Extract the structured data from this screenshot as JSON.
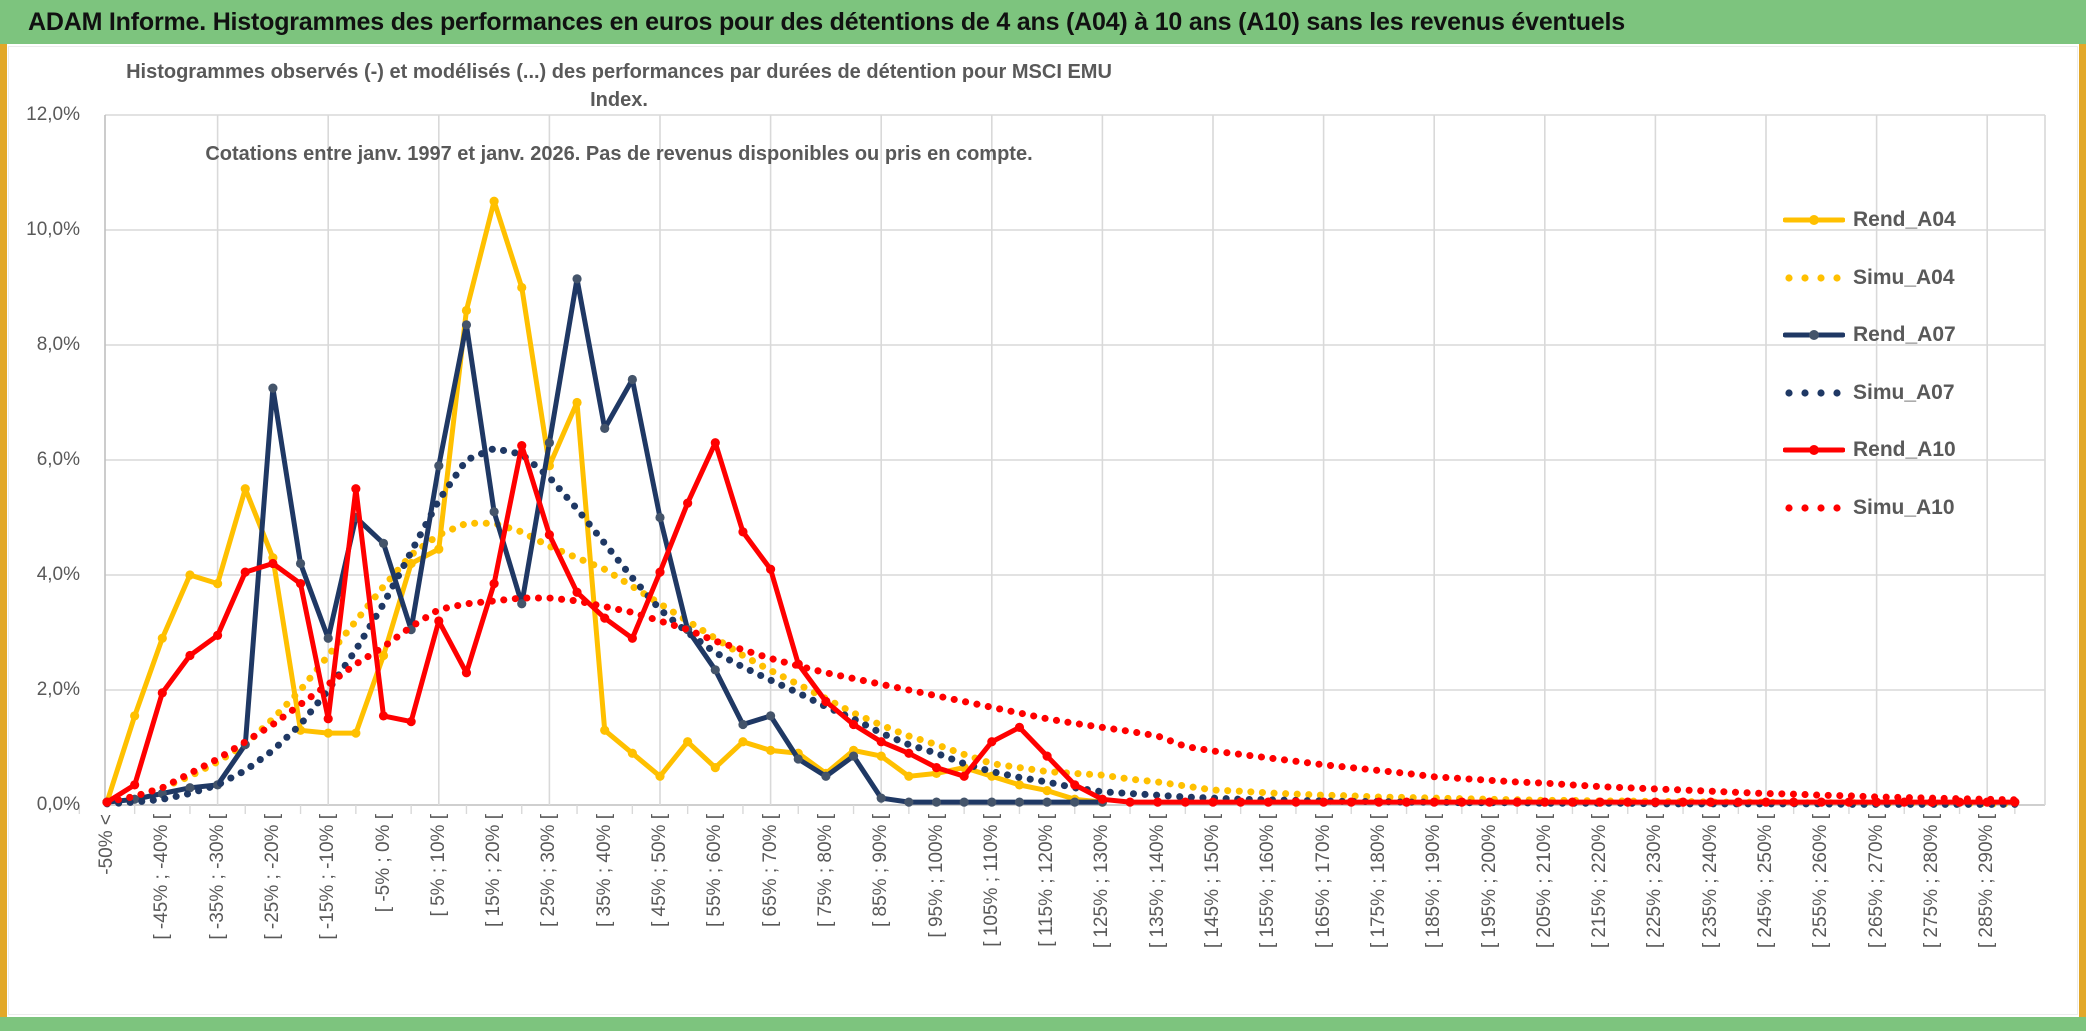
{
  "header": {
    "title": "ADAM Informe. Histogrammes des performances en euros pour des détentions de 4 ans (A04) à 10 ans (A10) sans les revenus éventuels",
    "bg_color": "#7DC47E",
    "accent_gold": "#E2A829"
  },
  "chart_data": {
    "type": "line",
    "title_line1": "Histogrammes observés (-) et modélisés (...) des performances par durées de détention pour MSCI EMU Index.",
    "title_line2": "Cotations entre janv. 1997 et janv. 2026. Pas de revenus disponibles ou pris en compte.",
    "ylabel": "",
    "xlabel": "",
    "ylim": [
      0,
      12
    ],
    "y_tick_labels": [
      "12,0%",
      "10,0%",
      "8,0%",
      "6,0%",
      "4,0%",
      "2,0%",
      "0,0%"
    ],
    "grid": true,
    "legend_position": "right",
    "bin_width_pct": 5,
    "x_labels_every_other_bin": true,
    "x_labels": [
      "-50% <",
      "[ -45% ; -40% [",
      "[ -35% ; -30% [",
      "[ -25% ; -20% [",
      "[ -15% ; -10% [",
      "[ -5% ; 0% [",
      "[ 5% ; 10% [",
      "[ 15% ; 20% [",
      "[ 25% ; 30% [",
      "[ 35% ; 40% [",
      "[ 45% ; 50% [",
      "[ 55% ; 60% [",
      "[ 65% ; 70% [",
      "[ 75% ; 80% [",
      "[ 85% ; 90% [",
      "[ 95% ; 100% [",
      "[ 105% ; 110% [",
      "[ 115% ; 120% [",
      "[ 125% ; 130% [",
      "[ 135% ; 140% [",
      "[ 145% ; 150% [",
      "[ 155% ; 160% [",
      "[ 165% ; 170% [",
      "[ 175% ; 180% [",
      "[ 185% ; 190% [",
      "[ 195% ; 200% [",
      "[ 205% ; 210% [",
      "[ 215% ; 220% [",
      "[ 225% ; 230% [",
      "[ 235% ; 240% [",
      "[ 245% ; 250% [",
      "[ 255% ; 260% [",
      "[ 265% ; 270% [",
      "[ 275% ; 280% [",
      "[ 285% ; 290% ["
    ],
    "series": [
      {
        "name": "Rend_A04",
        "style": "solid",
        "color": "#FFC000",
        "marker_color": "#FFC000",
        "values": [
          0.05,
          1.55,
          2.9,
          4.0,
          3.85,
          5.5,
          4.3,
          1.3,
          1.25,
          1.25,
          2.6,
          4.2,
          4.45,
          8.6,
          10.5,
          9.0,
          5.9,
          7.0,
          1.3,
          0.9,
          0.5,
          1.1,
          0.65,
          1.1,
          0.95,
          0.9,
          0.55,
          0.95,
          0.85,
          0.5,
          0.55,
          0.65,
          0.5,
          0.35,
          0.25,
          0.1,
          0.05,
          null,
          null,
          null,
          null,
          null,
          null,
          null,
          null,
          null,
          null,
          null,
          null,
          null,
          null,
          null,
          null,
          null,
          null,
          null,
          null,
          null,
          null,
          null,
          null,
          null,
          null,
          null,
          null,
          null,
          null,
          null,
          null,
          null
        ]
      },
      {
        "name": "Simu_A04",
        "style": "dotted",
        "color": "#FFC000",
        "values": [
          0.05,
          0.15,
          0.3,
          0.5,
          0.75,
          1.05,
          1.5,
          2.0,
          2.6,
          3.2,
          3.8,
          4.35,
          4.7,
          4.9,
          4.9,
          4.75,
          4.5,
          4.3,
          4.1,
          3.8,
          3.5,
          3.2,
          2.9,
          2.6,
          2.34,
          2.1,
          1.85,
          1.6,
          1.39,
          1.2,
          1.05,
          0.88,
          0.72,
          0.65,
          0.58,
          0.55,
          0.52,
          0.45,
          0.4,
          0.33,
          0.26,
          0.24,
          0.21,
          0.19,
          0.17,
          0.16,
          0.14,
          0.13,
          0.12,
          0.11,
          0.1,
          0.09,
          0.08,
          0.08,
          0.07,
          0.07,
          0.06,
          0.06,
          0.05,
          0.05,
          0.05,
          0.04,
          0.04,
          0.04,
          0.03,
          0.03,
          0.03,
          0.03,
          0.02,
          0.02
        ]
      },
      {
        "name": "Rend_A07",
        "style": "solid",
        "color": "#1F3864",
        "marker_color": "#44546A",
        "values": [
          0.05,
          0.1,
          0.2,
          0.3,
          0.35,
          1.05,
          7.25,
          4.2,
          2.9,
          5.0,
          4.55,
          3.05,
          5.9,
          8.35,
          5.1,
          3.5,
          6.3,
          9.15,
          6.55,
          7.4,
          5.0,
          3.05,
          2.35,
          1.4,
          1.55,
          0.8,
          0.5,
          0.85,
          0.12,
          0.05,
          0.05,
          0.05,
          0.05,
          0.05,
          0.05,
          0.05,
          0.05,
          null,
          null,
          null,
          null,
          null,
          null,
          null,
          null,
          null,
          null,
          null,
          null,
          null,
          null,
          null,
          null,
          null,
          null,
          null,
          null,
          null,
          null,
          null,
          null,
          null,
          null,
          null,
          null,
          null,
          null,
          null,
          null,
          null
        ]
      },
      {
        "name": "Simu_A07",
        "style": "dotted",
        "color": "#1F3864",
        "values": [
          0.02,
          0.05,
          0.1,
          0.2,
          0.35,
          0.6,
          0.95,
          1.4,
          2.0,
          2.7,
          3.5,
          4.4,
          5.3,
          6.0,
          6.2,
          6.1,
          5.7,
          5.15,
          4.55,
          3.95,
          3.4,
          3.0,
          2.65,
          2.4,
          2.17,
          1.95,
          1.71,
          1.5,
          1.25,
          1.05,
          0.9,
          0.72,
          0.58,
          0.48,
          0.4,
          0.3,
          0.23,
          0.2,
          0.17,
          0.14,
          0.12,
          0.1,
          0.09,
          0.08,
          0.07,
          0.06,
          0.06,
          0.05,
          0.05,
          0.04,
          0.04,
          0.04,
          0.03,
          0.03,
          0.03,
          0.03,
          0.02,
          0.02,
          0.02,
          0.02,
          0.02,
          0.02,
          0.02,
          0.01,
          0.01,
          0.01,
          0.01,
          0.01,
          0.01,
          0.01
        ]
      },
      {
        "name": "Rend_A10",
        "style": "solid",
        "color": "#FF0000",
        "marker_color": "#FF0000",
        "values": [
          0.05,
          0.35,
          1.95,
          2.6,
          2.95,
          4.05,
          4.2,
          3.85,
          1.5,
          5.5,
          1.55,
          1.45,
          3.2,
          2.3,
          3.85,
          6.25,
          4.7,
          3.7,
          3.25,
          2.9,
          4.05,
          5.25,
          6.3,
          4.75,
          4.1,
          2.45,
          1.8,
          1.4,
          1.1,
          0.9,
          0.65,
          0.5,
          1.1,
          1.35,
          0.85,
          0.35,
          0.1,
          0.05,
          0.05,
          0.05,
          0.05,
          0.05,
          0.05,
          0.05,
          0.05,
          0.05,
          0.05,
          0.05,
          0.05,
          0.05,
          0.05,
          0.05,
          0.05,
          0.05,
          0.05,
          0.05,
          0.05,
          0.05,
          0.05,
          0.05,
          0.05,
          0.05,
          0.05,
          0.05,
          0.05,
          0.05,
          0.05,
          0.05,
          0.05,
          0.05
        ]
      },
      {
        "name": "Simu_A10",
        "style": "dotted",
        "color": "#FF0000",
        "values": [
          0.05,
          0.15,
          0.3,
          0.55,
          0.8,
          1.1,
          1.4,
          1.75,
          2.1,
          2.45,
          2.75,
          3.1,
          3.4,
          3.5,
          3.55,
          3.6,
          3.6,
          3.55,
          3.45,
          3.35,
          3.2,
          3.05,
          2.85,
          2.7,
          2.55,
          2.42,
          2.3,
          2.2,
          2.1,
          2.0,
          1.9,
          1.8,
          1.7,
          1.6,
          1.5,
          1.42,
          1.35,
          1.28,
          1.2,
          1.02,
          0.94,
          0.88,
          0.82,
          0.76,
          0.7,
          0.65,
          0.6,
          0.55,
          0.49,
          0.46,
          0.43,
          0.4,
          0.38,
          0.35,
          0.32,
          0.3,
          0.28,
          0.26,
          0.24,
          0.22,
          0.2,
          0.19,
          0.17,
          0.16,
          0.14,
          0.13,
          0.12,
          0.11,
          0.1,
          0.09
        ]
      }
    ],
    "colors": {
      "grid": "#D9D9D9",
      "axis": "#BFBFBF",
      "text": "#595959"
    }
  }
}
